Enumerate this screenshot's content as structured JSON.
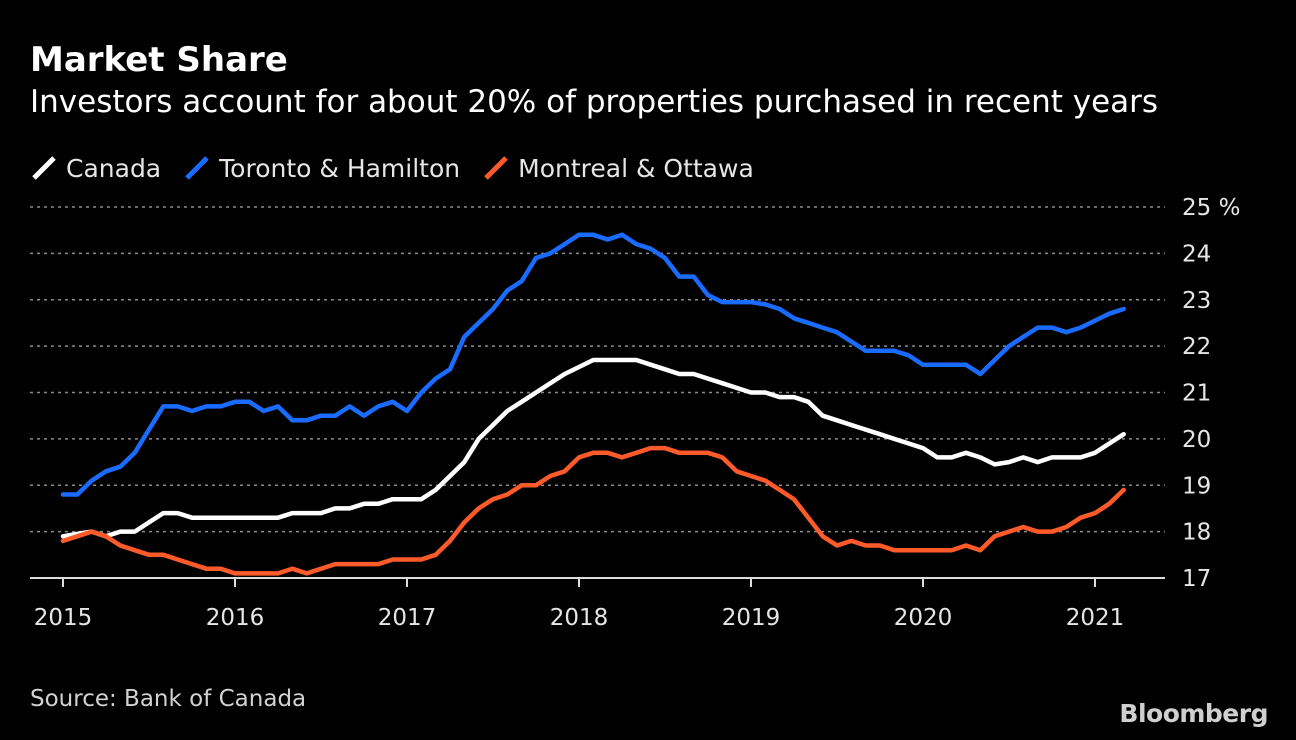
{
  "title": "Market Share",
  "subtitle": "Investors account for about 20% of properties purchased in recent years",
  "source": "Source: Bank of Canada",
  "brand": "Bloomberg",
  "chart_data": {
    "type": "line",
    "title": "Market Share",
    "subtitle": "Investors account for about 20% of properties purchased in recent years",
    "ylim": [
      17,
      25
    ],
    "y_ticks": [
      "17",
      "18",
      "19",
      "20",
      "21",
      "22",
      "23",
      "24",
      "25 %"
    ],
    "y_unit": "%",
    "x_range": [
      2015.0,
      2021.33
    ],
    "x_ticks": [
      "2015",
      "2016",
      "2017",
      "2018",
      "2019",
      "2020",
      "2021"
    ],
    "grid": "horizontal dotted",
    "legend_position": "top-left",
    "series": [
      {
        "name": "Canada",
        "color": "#ffffff",
        "x": [
          2015.0,
          2015.083,
          2015.167,
          2015.25,
          2015.333,
          2015.417,
          2015.5,
          2015.583,
          2015.667,
          2015.75,
          2015.833,
          2015.917,
          2016.0,
          2016.083,
          2016.167,
          2016.25,
          2016.333,
          2016.417,
          2016.5,
          2016.583,
          2016.667,
          2016.75,
          2016.833,
          2016.917,
          2017.0,
          2017.083,
          2017.167,
          2017.25,
          2017.333,
          2017.417,
          2017.5,
          2017.583,
          2017.667,
          2017.75,
          2017.833,
          2017.917,
          2018.0,
          2018.083,
          2018.167,
          2018.25,
          2018.333,
          2018.417,
          2018.5,
          2018.583,
          2018.667,
          2018.75,
          2018.833,
          2018.917,
          2019.0,
          2019.083,
          2019.167,
          2019.25,
          2019.333,
          2019.417,
          2019.5,
          2019.583,
          2019.667,
          2019.75,
          2019.833,
          2019.917,
          2020.0,
          2020.083,
          2020.167,
          2020.25,
          2020.333,
          2020.417,
          2020.5,
          2020.583,
          2020.667,
          2020.75,
          2020.833,
          2020.917,
          2021.0,
          2021.083,
          2021.167
        ],
        "values": [
          17.9,
          17.95,
          18.0,
          17.9,
          18.0,
          18.0,
          18.2,
          18.4,
          18.4,
          18.3,
          18.3,
          18.3,
          18.3,
          18.3,
          18.3,
          18.3,
          18.4,
          18.4,
          18.4,
          18.5,
          18.5,
          18.6,
          18.6,
          18.7,
          18.7,
          18.7,
          18.9,
          19.2,
          19.5,
          20.0,
          20.3,
          20.6,
          20.8,
          21.0,
          21.2,
          21.4,
          21.55,
          21.7,
          21.7,
          21.7,
          21.7,
          21.6,
          21.5,
          21.4,
          21.4,
          21.3,
          21.2,
          21.1,
          21.0,
          21.0,
          20.9,
          20.9,
          20.8,
          20.5,
          20.4,
          20.3,
          20.2,
          20.1,
          20.0,
          19.9,
          19.8,
          19.6,
          19.6,
          19.7,
          19.6,
          19.45,
          19.5,
          19.6,
          19.5,
          19.6,
          19.6,
          19.6,
          19.7,
          19.9,
          20.1
        ]
      },
      {
        "name": "Toronto & Hamilton",
        "color": "#1a6bff",
        "x": [
          2015.0,
          2015.083,
          2015.167,
          2015.25,
          2015.333,
          2015.417,
          2015.5,
          2015.583,
          2015.667,
          2015.75,
          2015.833,
          2015.917,
          2016.0,
          2016.083,
          2016.167,
          2016.25,
          2016.333,
          2016.417,
          2016.5,
          2016.583,
          2016.667,
          2016.75,
          2016.833,
          2016.917,
          2017.0,
          2017.083,
          2017.167,
          2017.25,
          2017.333,
          2017.417,
          2017.5,
          2017.583,
          2017.667,
          2017.75,
          2017.833,
          2017.917,
          2018.0,
          2018.083,
          2018.167,
          2018.25,
          2018.333,
          2018.417,
          2018.5,
          2018.583,
          2018.667,
          2018.75,
          2018.833,
          2018.917,
          2019.0,
          2019.083,
          2019.167,
          2019.25,
          2019.333,
          2019.417,
          2019.5,
          2019.583,
          2019.667,
          2019.75,
          2019.833,
          2019.917,
          2020.0,
          2020.083,
          2020.167,
          2020.25,
          2020.333,
          2020.417,
          2020.5,
          2020.583,
          2020.667,
          2020.75,
          2020.833,
          2020.917,
          2021.0,
          2021.083,
          2021.167
        ],
        "values": [
          18.8,
          18.8,
          19.1,
          19.3,
          19.4,
          19.7,
          20.2,
          20.7,
          20.7,
          20.6,
          20.7,
          20.7,
          20.8,
          20.8,
          20.6,
          20.7,
          20.4,
          20.4,
          20.5,
          20.5,
          20.7,
          20.5,
          20.7,
          20.8,
          20.6,
          21.0,
          21.3,
          21.5,
          22.2,
          22.5,
          22.8,
          23.2,
          23.4,
          23.9,
          24.0,
          24.2,
          24.4,
          24.4,
          24.3,
          24.4,
          24.2,
          24.1,
          23.9,
          23.5,
          23.5,
          23.1,
          22.95,
          22.95,
          22.95,
          22.9,
          22.8,
          22.6,
          22.5,
          22.4,
          22.3,
          22.1,
          21.9,
          21.9,
          21.9,
          21.8,
          21.6,
          21.6,
          21.6,
          21.6,
          21.4,
          21.7,
          22.0,
          22.2,
          22.4,
          22.4,
          22.3,
          22.4,
          22.55,
          22.7,
          22.8
        ]
      },
      {
        "name": "Montreal & Ottawa",
        "color": "#ff5a2a",
        "x": [
          2015.0,
          2015.083,
          2015.167,
          2015.25,
          2015.333,
          2015.417,
          2015.5,
          2015.583,
          2015.667,
          2015.75,
          2015.833,
          2015.917,
          2016.0,
          2016.083,
          2016.167,
          2016.25,
          2016.333,
          2016.417,
          2016.5,
          2016.583,
          2016.667,
          2016.75,
          2016.833,
          2016.917,
          2017.0,
          2017.083,
          2017.167,
          2017.25,
          2017.333,
          2017.417,
          2017.5,
          2017.583,
          2017.667,
          2017.75,
          2017.833,
          2017.917,
          2018.0,
          2018.083,
          2018.167,
          2018.25,
          2018.333,
          2018.417,
          2018.5,
          2018.583,
          2018.667,
          2018.75,
          2018.833,
          2018.917,
          2019.0,
          2019.083,
          2019.167,
          2019.25,
          2019.333,
          2019.417,
          2019.5,
          2019.583,
          2019.667,
          2019.75,
          2019.833,
          2019.917,
          2020.0,
          2020.083,
          2020.167,
          2020.25,
          2020.333,
          2020.417,
          2020.5,
          2020.583,
          2020.667,
          2020.75,
          2020.833,
          2020.917,
          2021.0,
          2021.083,
          2021.167
        ],
        "values": [
          17.8,
          17.9,
          18.0,
          17.9,
          17.7,
          17.6,
          17.5,
          17.5,
          17.4,
          17.3,
          17.2,
          17.2,
          17.1,
          17.1,
          17.1,
          17.1,
          17.2,
          17.1,
          17.2,
          17.3,
          17.3,
          17.3,
          17.3,
          17.4,
          17.4,
          17.4,
          17.5,
          17.8,
          18.2,
          18.5,
          18.7,
          18.8,
          19.0,
          19.0,
          19.2,
          19.3,
          19.6,
          19.7,
          19.7,
          19.6,
          19.7,
          19.8,
          19.8,
          19.7,
          19.7,
          19.7,
          19.6,
          19.3,
          19.2,
          19.1,
          18.9,
          18.7,
          18.3,
          17.9,
          17.7,
          17.8,
          17.7,
          17.7,
          17.6,
          17.6,
          17.6,
          17.6,
          17.6,
          17.7,
          17.6,
          17.9,
          18.0,
          18.1,
          18.0,
          18.0,
          18.1,
          18.3,
          18.4,
          18.6,
          18.9
        ]
      }
    ]
  }
}
